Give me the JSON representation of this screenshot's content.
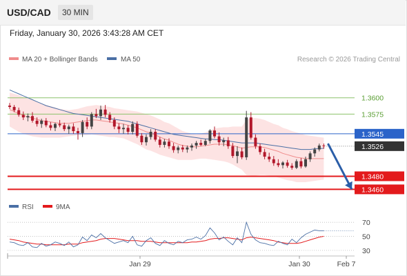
{
  "header": {
    "symbol": "USD/CAD",
    "timeframe": "30 MIN",
    "datetime": "Friday, January 30, 2026 3:43:28 AM CET"
  },
  "legend": {
    "ma20_label": "MA 20 + Bollinger Bands",
    "ma50_label": "MA 50",
    "research": "Research © 2026 Trading Central"
  },
  "colors": {
    "ma20": "#f08c8c",
    "ma50": "#4a6fa5",
    "band_fill": "#fde3e3",
    "candle_up": "#444444",
    "candle_down": "#b2182b",
    "resistance": "#8cc26a",
    "support": "#e31a1c",
    "pivot": "#2a63c9",
    "current": "#333333",
    "rsi": "#4a6fa5",
    "rsi_ma": "#e31a1c"
  },
  "chart_data": [
    {
      "type": "candlestick",
      "title": "",
      "x_labels": [
        "Jan 29",
        "Jan 30",
        "Feb 7"
      ],
      "ylim": [
        1.3452,
        1.3625
      ],
      "candles": [
        [
          1.3588,
          1.3592,
          1.3583,
          1.3586
        ],
        [
          1.3586,
          1.3589,
          1.3578,
          1.3581
        ],
        [
          1.3581,
          1.3585,
          1.3571,
          1.3574
        ],
        [
          1.3574,
          1.3579,
          1.3566,
          1.357
        ],
        [
          1.357,
          1.3576,
          1.3564,
          1.3572
        ],
        [
          1.3572,
          1.3578,
          1.3562,
          1.3565
        ],
        [
          1.3565,
          1.357,
          1.3556,
          1.356
        ],
        [
          1.356,
          1.3568,
          1.3554,
          1.3565
        ],
        [
          1.3565,
          1.3569,
          1.3555,
          1.3558
        ],
        [
          1.3558,
          1.3563,
          1.355,
          1.3554
        ],
        [
          1.3554,
          1.3562,
          1.3549,
          1.356
        ],
        [
          1.356,
          1.3566,
          1.3555,
          1.3558
        ],
        [
          1.3558,
          1.3562,
          1.3549,
          1.3552
        ],
        [
          1.3552,
          1.3559,
          1.3545,
          1.3556
        ],
        [
          1.3556,
          1.3561,
          1.3545,
          1.3549
        ],
        [
          1.3549,
          1.3554,
          1.3536,
          1.3546
        ],
        [
          1.3546,
          1.3566,
          1.354,
          1.3563
        ],
        [
          1.3563,
          1.357,
          1.3552,
          1.3556
        ],
        [
          1.3556,
          1.3578,
          1.3552,
          1.3575
        ],
        [
          1.3575,
          1.3583,
          1.3569,
          1.3572
        ],
        [
          1.3572,
          1.3588,
          1.3566,
          1.3582
        ],
        [
          1.3582,
          1.3589,
          1.357,
          1.3574
        ],
        [
          1.3574,
          1.3578,
          1.3562,
          1.3566
        ],
        [
          1.3566,
          1.357,
          1.3552,
          1.3556
        ],
        [
          1.3556,
          1.3561,
          1.3546,
          1.3552
        ],
        [
          1.3552,
          1.356,
          1.3545,
          1.3554
        ],
        [
          1.3554,
          1.3558,
          1.3544,
          1.3548
        ],
        [
          1.3548,
          1.3564,
          1.3544,
          1.356
        ],
        [
          1.356,
          1.3564,
          1.3539,
          1.3542
        ],
        [
          1.3542,
          1.3546,
          1.3528,
          1.3532
        ],
        [
          1.3532,
          1.3544,
          1.3527,
          1.354
        ],
        [
          1.354,
          1.3552,
          1.3536,
          1.3548
        ],
        [
          1.3548,
          1.3552,
          1.3533,
          1.3536
        ],
        [
          1.3536,
          1.354,
          1.3524,
          1.3528
        ],
        [
          1.3528,
          1.3537,
          1.3524,
          1.3533
        ],
        [
          1.3533,
          1.3538,
          1.3522,
          1.3526
        ],
        [
          1.3526,
          1.3531,
          1.3516,
          1.352
        ],
        [
          1.352,
          1.3527,
          1.3515,
          1.3524
        ],
        [
          1.3524,
          1.3528,
          1.3517,
          1.3521
        ],
        [
          1.3521,
          1.3527,
          1.3516,
          1.3524
        ],
        [
          1.3524,
          1.353,
          1.3519,
          1.3527
        ],
        [
          1.3527,
          1.3534,
          1.3522,
          1.3531
        ],
        [
          1.3531,
          1.3536,
          1.3526,
          1.3528
        ],
        [
          1.3528,
          1.3537,
          1.3526,
          1.3534
        ],
        [
          1.3534,
          1.3552,
          1.353,
          1.355
        ],
        [
          1.355,
          1.3556,
          1.3538,
          1.3541
        ],
        [
          1.3541,
          1.3547,
          1.3527,
          1.3532
        ],
        [
          1.3532,
          1.3539,
          1.3526,
          1.3535
        ],
        [
          1.3535,
          1.354,
          1.3522,
          1.3526
        ],
        [
          1.3526,
          1.3531,
          1.3508,
          1.3511
        ],
        [
          1.3511,
          1.3526,
          1.35,
          1.3518
        ],
        [
          1.3518,
          1.3524,
          1.3506,
          1.3509
        ],
        [
          1.3509,
          1.358,
          1.3505,
          1.357
        ],
        [
          1.357,
          1.3578,
          1.3536,
          1.3539
        ],
        [
          1.3539,
          1.3544,
          1.3522,
          1.3526
        ],
        [
          1.3526,
          1.353,
          1.3513,
          1.3517
        ],
        [
          1.3517,
          1.3522,
          1.3506,
          1.351
        ],
        [
          1.351,
          1.3516,
          1.3502,
          1.3506
        ],
        [
          1.3506,
          1.3511,
          1.3496,
          1.35
        ],
        [
          1.35,
          1.3506,
          1.3494,
          1.3497
        ],
        [
          1.3497,
          1.3503,
          1.3492,
          1.3501
        ],
        [
          1.3501,
          1.3505,
          1.3493,
          1.3496
        ],
        [
          1.3496,
          1.35,
          1.349,
          1.3493
        ],
        [
          1.3493,
          1.3506,
          1.3491,
          1.3503
        ],
        [
          1.3503,
          1.3508,
          1.3492,
          1.3495
        ],
        [
          1.3495,
          1.351,
          1.3493,
          1.3506
        ],
        [
          1.3506,
          1.3518,
          1.3502,
          1.3515
        ],
        [
          1.3515,
          1.3524,
          1.351,
          1.3521
        ],
        [
          1.3521,
          1.353,
          1.3518,
          1.3527
        ],
        [
          1.3527,
          1.353,
          1.3522,
          1.3526
        ]
      ],
      "ma20": [
        1.3582,
        1.3579,
        1.3576,
        1.3573,
        1.3571,
        1.3569,
        1.3567,
        1.3565,
        1.3564,
        1.3563,
        1.3562,
        1.3561,
        1.3561,
        1.3561,
        1.3562,
        1.3563,
        1.3564,
        1.3565,
        1.3566,
        1.3566,
        1.3565,
        1.3564,
        1.3563,
        1.3562,
        1.3561,
        1.356,
        1.3558,
        1.3556,
        1.3554,
        1.3551,
        1.3548,
        1.3546,
        1.3543,
        1.354,
        1.3537,
        1.3535,
        1.3532,
        1.3529,
        1.3527,
        1.3526,
        1.3525,
        1.3525,
        1.3526,
        1.3527,
        1.3528,
        1.3529,
        1.3529,
        1.3529,
        1.3528,
        1.3527,
        1.3525,
        1.3523,
        1.3524,
        1.3525,
        1.3525,
        1.3525,
        1.3524,
        1.3522,
        1.352,
        1.3518,
        1.3515,
        1.3513,
        1.3511,
        1.3509,
        1.3508,
        1.3507,
        1.3507,
        1.3507,
        1.3507,
        1.3507
      ],
      "ma50": [
        1.3612,
        1.3609,
        1.3606,
        1.3603,
        1.36,
        1.3597,
        1.3594,
        1.3591,
        1.3588,
        1.3586,
        1.3584,
        1.3582,
        1.358,
        1.3578,
        1.3576,
        1.3575,
        1.3574,
        1.3573,
        1.3572,
        1.3571,
        1.357,
        1.3569,
        1.3568,
        1.3567,
        1.3566,
        1.3565,
        1.3564,
        1.3562,
        1.356,
        1.3558,
        1.3556,
        1.3554,
        1.3552,
        1.355,
        1.3548,
        1.3546,
        1.3544,
        1.3543,
        1.3542,
        1.3541,
        1.354,
        1.3539,
        1.3538,
        1.3537,
        1.3537,
        1.3536,
        1.3536,
        1.3535,
        1.3534,
        1.3533,
        1.3532,
        1.3531,
        1.3531,
        1.3531,
        1.3531,
        1.353,
        1.3529,
        1.3528,
        1.3527,
        1.3526,
        1.3525,
        1.3524,
        1.3523,
        1.3522,
        1.3521,
        1.3521,
        1.3521,
        1.3522,
        1.3522,
        1.3523
      ],
      "band_width": [
        0.0026,
        0.0027,
        0.0028,
        0.0028,
        0.0028,
        0.0028,
        0.0027,
        0.0026,
        0.0025,
        0.0024,
        0.0023,
        0.0022,
        0.0021,
        0.002,
        0.002,
        0.002,
        0.0021,
        0.0022,
        0.0022,
        0.0023,
        0.0023,
        0.0023,
        0.0023,
        0.0022,
        0.0022,
        0.0022,
        0.0023,
        0.0024,
        0.0025,
        0.0026,
        0.0027,
        0.0027,
        0.0027,
        0.0027,
        0.0026,
        0.0026,
        0.0025,
        0.0024,
        0.0022,
        0.0021,
        0.002,
        0.0019,
        0.0019,
        0.002,
        0.0022,
        0.0024,
        0.0025,
        0.0026,
        0.0027,
        0.0029,
        0.0031,
        0.0033,
        0.0042,
        0.0044,
        0.0044,
        0.0043,
        0.0042,
        0.0041,
        0.004,
        0.004,
        0.0039,
        0.0039,
        0.0038,
        0.0038,
        0.0037,
        0.0036,
        0.0035,
        0.0034,
        0.0033,
        0.0032
      ],
      "levels": [
        {
          "value": 1.36,
          "label": "1.3600",
          "kind": "resistance"
        },
        {
          "value": 1.3575,
          "label": "1.3575",
          "kind": "resistance"
        },
        {
          "value": 1.3545,
          "label": "1.3545",
          "kind": "pivot"
        },
        {
          "value": 1.3526,
          "label": "1.3526",
          "kind": "current"
        },
        {
          "value": 1.348,
          "label": "1.3480",
          "kind": "support"
        },
        {
          "value": 1.346,
          "label": "1.3460",
          "kind": "support"
        }
      ],
      "forecast": {
        "from": 1.353,
        "to": 1.346
      }
    },
    {
      "type": "line",
      "title": "",
      "series": [
        {
          "name": "RSI",
          "values": [
            42,
            41,
            38,
            37,
            41,
            35,
            34,
            40,
            36,
            38,
            42,
            40,
            37,
            42,
            35,
            38,
            49,
            44,
            52,
            48,
            54,
            48,
            44,
            40,
            42,
            44,
            41,
            50,
            38,
            36,
            44,
            48,
            40,
            37,
            44,
            40,
            38,
            43,
            41,
            45,
            46,
            49,
            46,
            51,
            62,
            55,
            45,
            49,
            43,
            38,
            48,
            41,
            70,
            53,
            45,
            41,
            40,
            38,
            37,
            43,
            40,
            38,
            46,
            41,
            48,
            53,
            56,
            59,
            58,
            58
          ]
        },
        {
          "name": "9MA",
          "values": [
            46,
            45,
            44,
            42,
            41,
            40,
            39,
            39,
            38,
            38,
            38,
            38,
            38,
            39,
            39,
            39,
            41,
            42,
            43,
            44,
            46,
            47,
            47,
            47,
            46,
            45,
            44,
            44,
            44,
            43,
            43,
            43,
            42,
            41,
            41,
            41,
            41,
            41,
            41,
            41,
            42,
            42,
            43,
            44,
            46,
            47,
            47,
            48,
            48,
            47,
            46,
            45,
            48,
            49,
            48,
            47,
            46,
            45,
            44,
            42,
            41,
            40,
            40,
            40,
            41,
            43,
            45,
            47,
            49,
            50
          ]
        }
      ],
      "yticks": [
        70,
        50,
        30
      ],
      "ylim": [
        25,
        80
      ]
    }
  ]
}
